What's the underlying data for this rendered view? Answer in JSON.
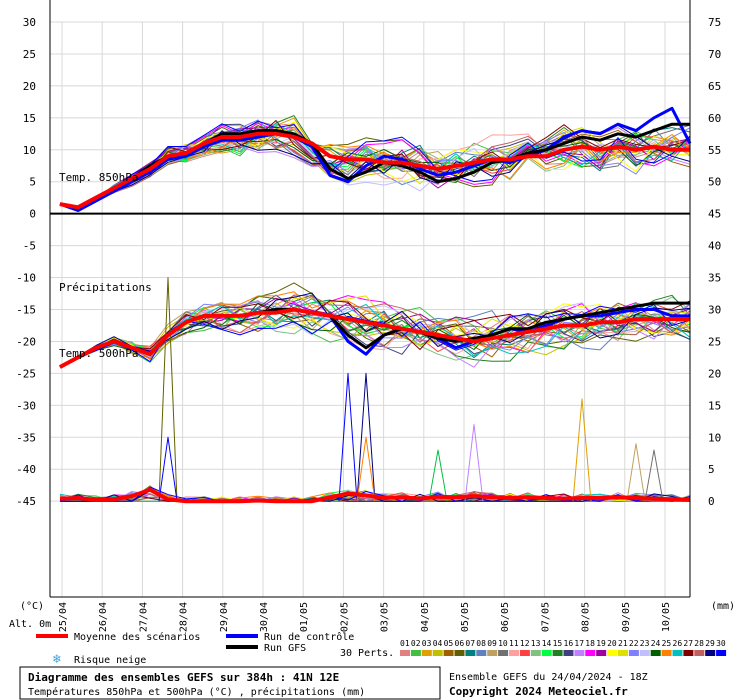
{
  "chart_data": {
    "type": "line",
    "title": "Diagramme des ensembles GEFS sur 384h : 41N 12E",
    "subtitle": "Températures 850hPa et 500hPa (°C) , précipitations (mm)",
    "run_info": "Ensemble GEFS du 24/04/2024 - 18Z",
    "copyright": "Copyright 2024 Meteociel.fr",
    "left_axis": {
      "label": "(°C)",
      "min": -60,
      "max": 30,
      "ticks": [
        30,
        25,
        20,
        15,
        10,
        5,
        0,
        -5,
        -10,
        -15,
        -20,
        -25,
        -30,
        -35,
        -40,
        -45
      ]
    },
    "right_axis": {
      "label": "(mm)",
      "ticks": [
        75,
        70,
        65,
        60,
        55,
        50,
        45,
        40,
        35,
        30,
        25,
        20,
        15,
        10,
        5,
        0
      ]
    },
    "alt_label": "Alt. 0m",
    "x_dates": [
      "25/04",
      "26/04",
      "27/04",
      "28/04",
      "29/04",
      "30/04",
      "01/05",
      "02/05",
      "03/05",
      "04/05",
      "05/05",
      "06/05",
      "07/05",
      "08/05",
      "09/05",
      "10/05"
    ],
    "panel_labels": {
      "t850": "Temp. 850hPa",
      "t500": "Temp. 500hPa",
      "precip": "Précipitations"
    },
    "mean_t850": [
      1.5,
      1,
      2.5,
      4,
      5.5,
      7,
      9,
      9.5,
      11,
      12,
      12,
      12.5,
      12.5,
      12,
      11,
      9,
      8.5,
      8.5,
      8,
      8,
      7.5,
      7,
      7.5,
      8,
      8.5,
      8.5,
      9,
      9,
      10,
      10.5,
      10,
      10.5,
      10,
      10.5,
      10,
      10
    ],
    "ctrl_t850": [
      1.5,
      0.5,
      2,
      3.5,
      5,
      6.5,
      8.5,
      9,
      10.5,
      11.5,
      11.5,
      12,
      12.5,
      12,
      10.5,
      6,
      5,
      7.5,
      9,
      8.5,
      7,
      6,
      6.5,
      7.5,
      8.5,
      8,
      9,
      10,
      12,
      13,
      12.5,
      14,
      13,
      15,
      16.5,
      11
    ],
    "gfs_t850": [
      1.5,
      1,
      2.5,
      4,
      5.5,
      7.5,
      9,
      9.5,
      11,
      12.5,
      12.5,
      13,
      13,
      12.5,
      11,
      7,
      5.5,
      6.5,
      8,
      7.5,
      6.5,
      5,
      5.5,
      6.5,
      8,
      8.5,
      9.5,
      10,
      11,
      12,
      11.5,
      12.5,
      12,
      13,
      14,
      14
    ],
    "mean_t500": [
      -24,
      -22.5,
      -21,
      -20,
      -21,
      -22,
      -19,
      -17,
      -16,
      -16,
      -16,
      -15.5,
      -15.5,
      -15,
      -15.5,
      -16,
      -16.5,
      -17,
      -17.5,
      -18,
      -18.5,
      -19,
      -19.5,
      -20,
      -19.5,
      -19,
      -18.5,
      -18,
      -17.5,
      -17.5,
      -17,
      -17,
      -16.5,
      -16.5,
      -16.5,
      -16.5
    ],
    "ctrl_t500": [
      -24,
      -22.5,
      -21,
      -20,
      -21,
      -22,
      -19,
      -17,
      -16,
      -16,
      -16,
      -15.5,
      -15,
      -15,
      -15.5,
      -16,
      -20,
      -22,
      -19,
      -18,
      -18.5,
      -19.5,
      -21,
      -20,
      -19,
      -18,
      -18.5,
      -17.5,
      -16.5,
      -16,
      -16,
      -15.5,
      -15,
      -15,
      -16,
      -16
    ],
    "gfs_t500": [
      -24,
      -22.5,
      -21,
      -20,
      -21,
      -22,
      -19,
      -17,
      -16,
      -16,
      -16,
      -15.5,
      -15,
      -15,
      -15.5,
      -16,
      -19,
      -21,
      -19,
      -18,
      -18.5,
      -19.5,
      -20,
      -19.5,
      -19,
      -18,
      -18,
      -17,
      -16.5,
      -16,
      -15.5,
      -15,
      -14.5,
      -14,
      -14,
      -14
    ],
    "mean_precip": [
      0.4,
      0.5,
      0.2,
      0.3,
      0.8,
      1.8,
      0.3,
      0,
      0,
      0,
      0,
      0.1,
      0,
      0,
      0,
      0.6,
      1.2,
      0.9,
      0.5,
      0.6,
      0.4,
      0.7,
      0.6,
      0.8,
      0.6,
      0.5,
      0.6,
      0.5,
      0.4,
      0.5,
      0.5,
      0.6,
      0.5,
      0.4,
      0.3,
      0.2
    ],
    "members": [
      {
        "id": "01",
        "color": "#e08080"
      },
      {
        "id": "02",
        "color": "#40c040"
      },
      {
        "id": "03",
        "color": "#e0a000"
      },
      {
        "id": "04",
        "color": "#c0c000"
      },
      {
        "id": "05",
        "color": "#a06000"
      },
      {
        "id": "06",
        "color": "#606000"
      },
      {
        "id": "07",
        "color": "#008080"
      },
      {
        "id": "08",
        "color": "#6080c0"
      },
      {
        "id": "09",
        "color": "#c0a060"
      },
      {
        "id": "10",
        "color": "#707070"
      },
      {
        "id": "11",
        "color": "#ffa0a0"
      },
      {
        "id": "12",
        "color": "#ff4040"
      },
      {
        "id": "13",
        "color": "#80c080"
      },
      {
        "id": "14",
        "color": "#00ff40"
      },
      {
        "id": "15",
        "color": "#208020"
      },
      {
        "id": "16",
        "color": "#404080"
      },
      {
        "id": "17",
        "color": "#c080ff"
      },
      {
        "id": "18",
        "color": "#ff00ff"
      },
      {
        "id": "19",
        "color": "#a000a0"
      },
      {
        "id": "20",
        "color": "#ffff00"
      },
      {
        "id": "21",
        "color": "#e0e000"
      },
      {
        "id": "22",
        "color": "#8080ff"
      },
      {
        "id": "23",
        "color": "#c0c0ff"
      },
      {
        "id": "24",
        "color": "#006000"
      },
      {
        "id": "25",
        "color": "#ff8000"
      },
      {
        "id": "26",
        "color": "#00c0c0"
      },
      {
        "id": "27",
        "color": "#800000"
      },
      {
        "id": "28",
        "color": "#c06060"
      },
      {
        "id": "29",
        "color": "#000080"
      },
      {
        "id": "30",
        "color": "#0000ff"
      }
    ]
  },
  "legend": {
    "mean": "Moyenne des scénarios",
    "control": "Run de contrôle",
    "gfs": "Run GFS",
    "snow": "Risque neige",
    "perts": "30 Perts.",
    "mean_color": "#ff0000",
    "control_color": "#0000ff",
    "gfs_color": "#000000"
  }
}
